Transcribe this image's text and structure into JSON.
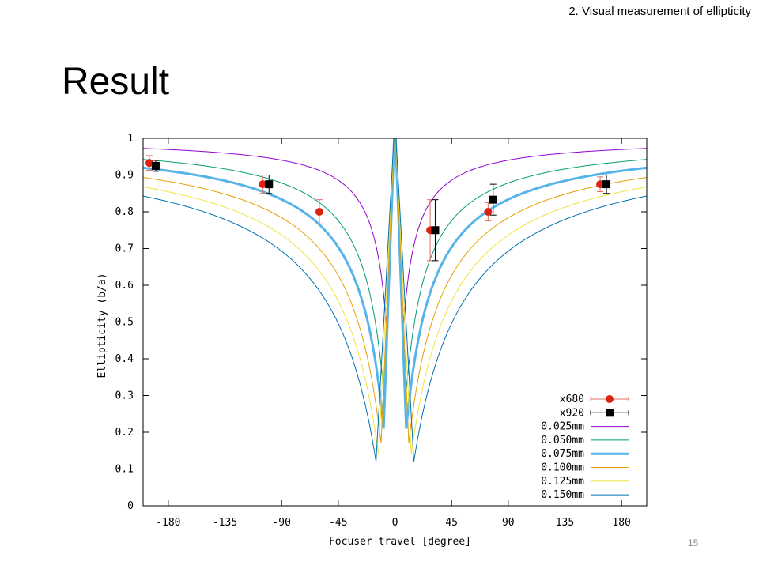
{
  "slide": {
    "section": "2.   Visual measurement of ellipticity",
    "title": "Result",
    "page_number": "15"
  },
  "chart_data": {
    "type": "line",
    "title": "",
    "xlabel": "Focuser travel [degree]",
    "ylabel": "Ellipticity (b/a)",
    "xlim": [
      -200,
      200
    ],
    "ylim": [
      0,
      1
    ],
    "xticks": [
      -180,
      -135,
      -90,
      -45,
      0,
      45,
      90,
      135,
      180
    ],
    "yticks": [
      0,
      0.1,
      0.2,
      0.3,
      0.4,
      0.5,
      0.6,
      0.7,
      0.8,
      0.9,
      1
    ],
    "grid": false,
    "legend_position": "bottom-right",
    "series": [
      {
        "name": "x680",
        "kind": "points",
        "marker": "circle",
        "color": "#dd2211",
        "error_color": "#e07060",
        "x": [
          -195,
          -105,
          -60,
          28,
          74,
          163
        ],
        "y": [
          0.933,
          0.875,
          0.8,
          0.75,
          0.8,
          0.875
        ],
        "yerr": [
          0.02,
          0.025,
          0.033,
          0.083,
          0.025,
          0.02
        ]
      },
      {
        "name": "x920",
        "kind": "points",
        "marker": "square",
        "color": "#000000",
        "error_color": "#000000",
        "x": [
          -190,
          -100,
          32,
          78,
          168
        ],
        "y": [
          0.925,
          0.875,
          0.75,
          0.833,
          0.875
        ],
        "yerr": [
          0.015,
          0.025,
          0.083,
          0.042,
          0.025
        ]
      },
      {
        "name": "0.025mm",
        "kind": "curve",
        "color": "#9400d3",
        "width": 1,
        "k": 4.2,
        "cusp_x": 6,
        "cusp_y": 0.45
      },
      {
        "name": "0.050mm",
        "kind": "curve",
        "color": "#009e73",
        "width": 1,
        "k": 8.4,
        "cusp_x": 8,
        "cusp_y": 0.27
      },
      {
        "name": "0.075mm",
        "kind": "curve",
        "color": "#56b4e9",
        "width": 3,
        "k": 12.6,
        "cusp_x": 9,
        "cusp_y": 0.21
      },
      {
        "name": "0.100mm",
        "kind": "curve",
        "color": "#e69f00",
        "width": 1,
        "k": 16.8,
        "cusp_x": 11,
        "cusp_y": 0.17
      },
      {
        "name": "0.125mm",
        "kind": "curve",
        "color": "#f0e442",
        "width": 1,
        "k": 21,
        "cusp_x": 13,
        "cusp_y": 0.14
      },
      {
        "name": "0.150mm",
        "kind": "curve",
        "color": "#0072b2",
        "width": 1,
        "k": 25.2,
        "cusp_x": 15,
        "cusp_y": 0.12
      }
    ]
  }
}
